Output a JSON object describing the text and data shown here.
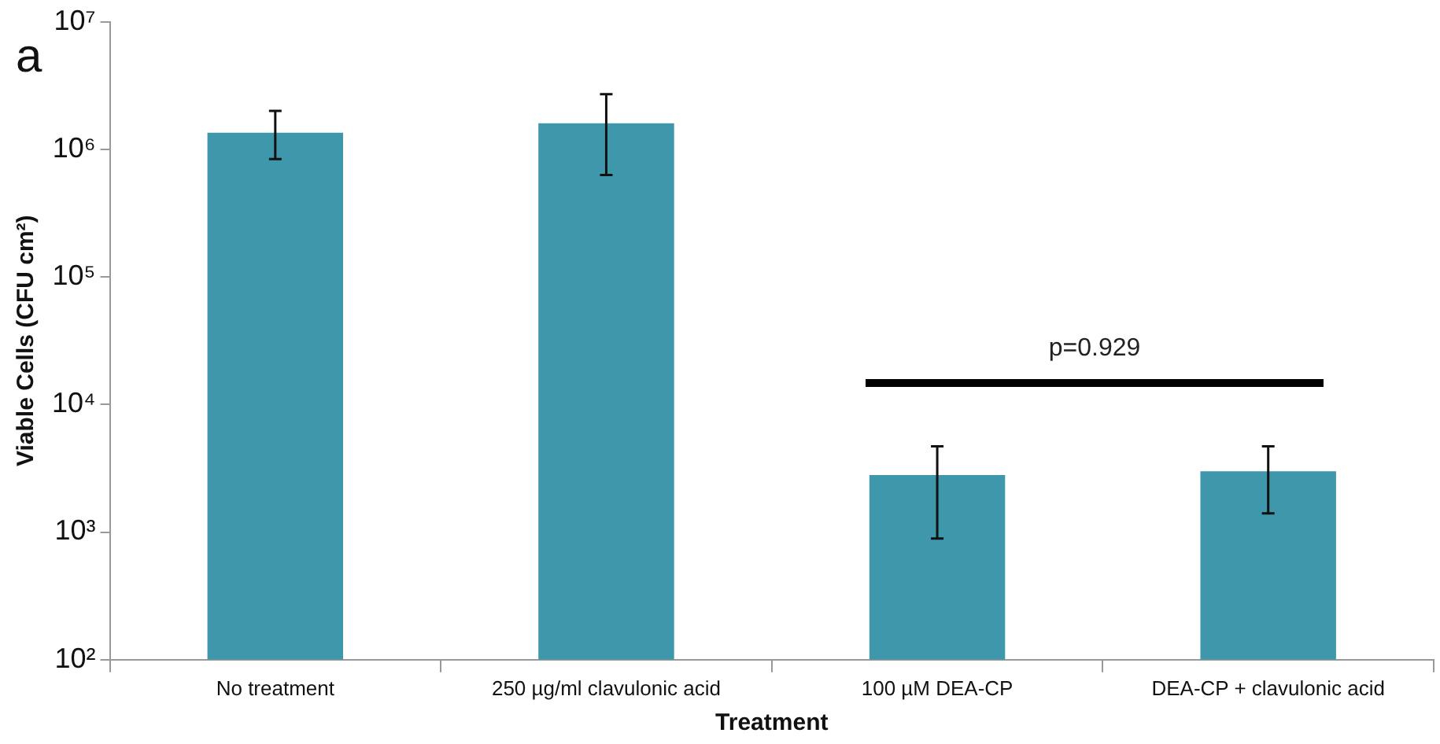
{
  "chart_data": {
    "type": "bar",
    "title": "a",
    "xlabel": "Treatment",
    "ylabel": "Viable Cells (CFU cm²)",
    "categories": [
      "No treatment",
      "250 µg/ml clavulonic acid",
      "100 µM DEA-CP",
      "DEA-CP + clavulonic acid"
    ],
    "values": [
      1350000,
      1600000,
      2800,
      3000
    ],
    "errors": [
      [
        840000,
        2000000
      ],
      [
        630000,
        2700000
      ],
      [
        890,
        4700
      ],
      [
        1400,
        4700
      ]
    ],
    "color": "#3e97ab",
    "log": "y",
    "ylim": [
      100,
      10000000
    ],
    "yticks": [
      {
        "value": 100,
        "label": "10²"
      },
      {
        "value": 1000,
        "label": "10³"
      },
      {
        "value": 10000,
        "label": "10⁴"
      },
      {
        "value": 100000,
        "label": "10⁵"
      },
      {
        "value": 1000000,
        "label": "10⁶"
      },
      {
        "value": 10000000,
        "label": "10⁷"
      }
    ],
    "annotations": [
      "p=0.929"
    ],
    "grid": false,
    "legend": false
  }
}
